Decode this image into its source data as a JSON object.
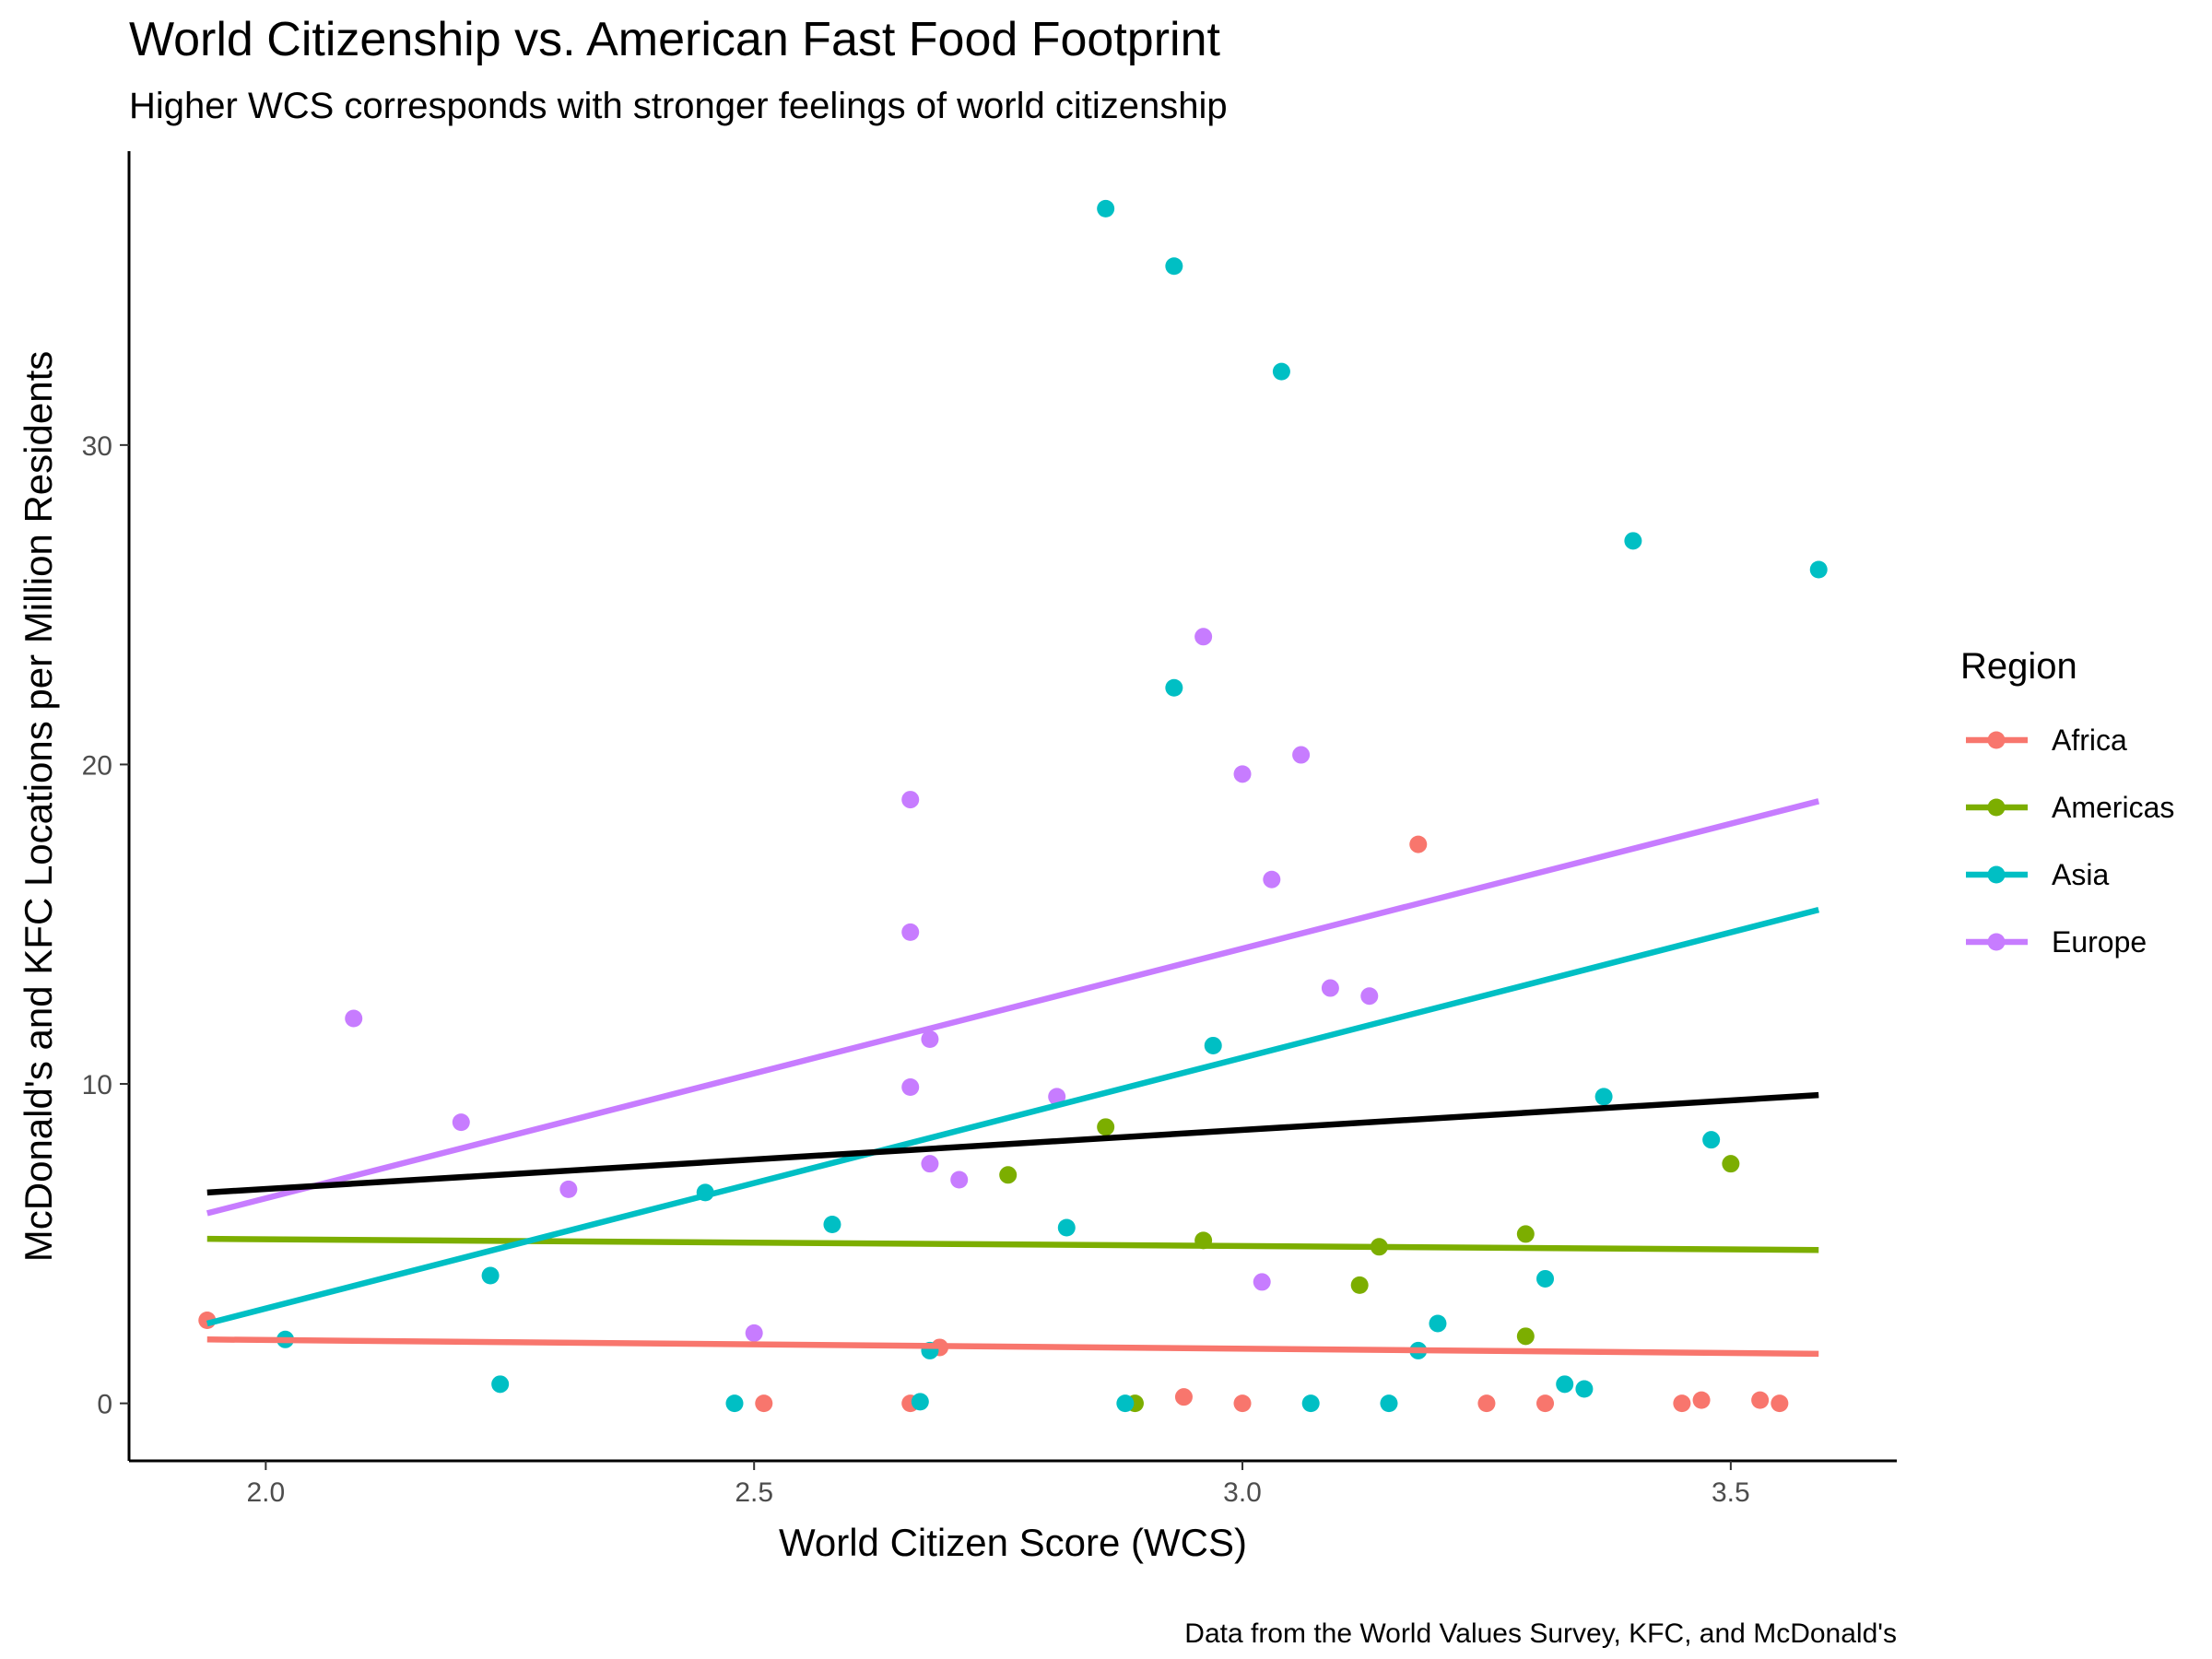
{
  "chart_data": {
    "type": "scatter",
    "title": "World Citizenship vs. American Fast Food Footprint",
    "subtitle": "Higher WCS corresponds with stronger feelings of world citizenship",
    "xlabel": "World Citizen Score (WCS)",
    "ylabel": "McDonald's and KFC Locations per Million Residents",
    "caption": "Data from the World Values Survey, KFC, and McDonald's",
    "xlim": [
      1.86,
      3.67
    ],
    "ylim": [
      -1.8,
      39.2
    ],
    "xticks": [
      2.0,
      2.5,
      3.0,
      3.5
    ],
    "xtick_labels": [
      "2.0",
      "2.5",
      "3.0",
      "3.5"
    ],
    "yticks": [
      0,
      10,
      20,
      30
    ],
    "ytick_labels": [
      "0",
      "10",
      "20",
      "30"
    ],
    "grid": false,
    "legend": {
      "title": "Region",
      "position": "right",
      "entries": [
        "Africa",
        "Americas",
        "Asia",
        "Europe"
      ]
    },
    "series": [
      {
        "name": "Africa",
        "color": "#F8766D",
        "points": [
          [
            1.94,
            2.6
          ],
          [
            2.51,
            0.0
          ],
          [
            2.66,
            0.0
          ],
          [
            2.69,
            1.75
          ],
          [
            2.94,
            0.2
          ],
          [
            3.0,
            0.0
          ],
          [
            3.18,
            17.5
          ],
          [
            3.25,
            0.0
          ],
          [
            3.31,
            0.0
          ],
          [
            3.45,
            0.0
          ],
          [
            3.47,
            0.1
          ],
          [
            3.53,
            0.1
          ],
          [
            3.55,
            0.0
          ]
        ],
        "fit": [
          [
            1.94,
            2.0
          ],
          [
            3.59,
            1.55
          ]
        ]
      },
      {
        "name": "Americas",
        "color": "#7CAE00",
        "points": [
          [
            2.76,
            7.15
          ],
          [
            2.86,
            8.65
          ],
          [
            2.89,
            0.0
          ],
          [
            2.96,
            5.1
          ],
          [
            3.12,
            3.7
          ],
          [
            3.14,
            4.9
          ],
          [
            3.29,
            5.3
          ],
          [
            3.29,
            2.1
          ],
          [
            3.5,
            7.5
          ]
        ],
        "fit": [
          [
            1.94,
            5.15
          ],
          [
            3.59,
            4.8
          ]
        ]
      },
      {
        "name": "Asia",
        "color": "#00BFC4",
        "points": [
          [
            2.02,
            2.0
          ],
          [
            2.23,
            4.0
          ],
          [
            2.24,
            0.6
          ],
          [
            2.45,
            6.6
          ],
          [
            2.48,
            0.0
          ],
          [
            2.58,
            5.6
          ],
          [
            2.67,
            0.05
          ],
          [
            2.68,
            1.65
          ],
          [
            2.82,
            5.5
          ],
          [
            2.86,
            37.4
          ],
          [
            2.88,
            0.0
          ],
          [
            2.93,
            35.6
          ],
          [
            2.93,
            22.4
          ],
          [
            2.97,
            11.2
          ],
          [
            3.04,
            32.3
          ],
          [
            3.07,
            0.0
          ],
          [
            3.15,
            0.0
          ],
          [
            3.18,
            1.65
          ],
          [
            3.2,
            2.5
          ],
          [
            3.31,
            3.9
          ],
          [
            3.33,
            0.6
          ],
          [
            3.35,
            0.45
          ],
          [
            3.37,
            9.6
          ],
          [
            3.4,
            27.0
          ],
          [
            3.48,
            8.25
          ],
          [
            3.59,
            26.1
          ]
        ],
        "fit": [
          [
            1.94,
            2.5
          ],
          [
            3.59,
            15.45
          ]
        ]
      },
      {
        "name": "Europe",
        "color": "#C77CFF",
        "points": [
          [
            2.09,
            12.05
          ],
          [
            2.2,
            8.8
          ],
          [
            2.31,
            6.7
          ],
          [
            2.5,
            2.2
          ],
          [
            2.66,
            18.9
          ],
          [
            2.66,
            14.75
          ],
          [
            2.66,
            9.9
          ],
          [
            2.68,
            11.4
          ],
          [
            2.68,
            7.5
          ],
          [
            2.71,
            7.0
          ],
          [
            2.81,
            9.6
          ],
          [
            2.96,
            24.0
          ],
          [
            3.0,
            19.7
          ],
          [
            3.02,
            3.8
          ],
          [
            3.03,
            16.4
          ],
          [
            3.06,
            20.3
          ],
          [
            3.09,
            13.0
          ],
          [
            3.13,
            12.75
          ]
        ],
        "fit": [
          [
            1.94,
            5.95
          ],
          [
            3.59,
            18.85
          ]
        ]
      }
    ],
    "overall_fit": {
      "color": "#000000",
      "line": [
        [
          1.94,
          6.6
        ],
        [
          3.59,
          9.65
        ]
      ]
    }
  }
}
